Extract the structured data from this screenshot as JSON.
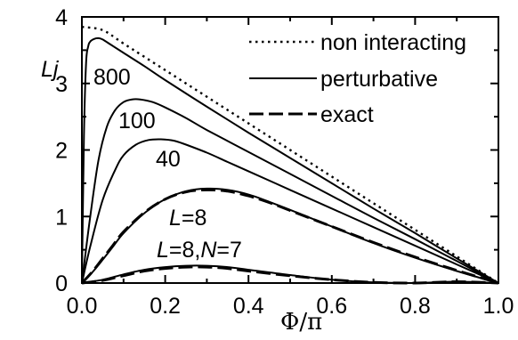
{
  "chart_data": {
    "type": "line",
    "xlabel": "Φ/π",
    "ylabel": "Lj",
    "xlim": [
      0.0,
      1.0
    ],
    "ylim": [
      0,
      4
    ],
    "x_ticks": [
      "0.0",
      "0.2",
      "0.4",
      "0.6",
      "0.8",
      "1.0"
    ],
    "y_ticks": [
      "0",
      "1",
      "2",
      "3",
      "4"
    ],
    "grid": false,
    "legend_position": "top-right",
    "legend": [
      {
        "label": "non interacting",
        "style": "dotted"
      },
      {
        "label": "perturbative",
        "style": "solid"
      },
      {
        "label": "exact",
        "style": "dashed"
      }
    ],
    "annotations": {
      "a800": "800",
      "a100": "100",
      "a40": "40",
      "l8_italic": "L",
      "l8_rest": "=8",
      "l8n7_L": "L",
      "l8n7_mid": "=8,",
      "l8n7_N": "N",
      "l8n7_end": "=7"
    },
    "series": [
      {
        "name": "non interacting",
        "style": "dotted",
        "x": [
          0.0,
          0.05,
          0.1,
          0.2,
          0.3,
          0.4,
          0.5,
          0.6,
          0.7,
          0.8,
          0.9,
          1.0
        ],
        "y": [
          3.85,
          3.8,
          3.6,
          3.2,
          2.8,
          2.4,
          2.0,
          1.6,
          1.2,
          0.8,
          0.4,
          0.0
        ]
      },
      {
        "name": "800",
        "style": "solid",
        "x": [
          0.0,
          0.005,
          0.01,
          0.015,
          0.02,
          0.03,
          0.04,
          0.05,
          0.07,
          0.1,
          0.15,
          0.2,
          0.3,
          0.4,
          0.5,
          0.6,
          0.7,
          0.8,
          0.9,
          1.0
        ],
        "y": [
          0.0,
          2.2,
          3.3,
          3.55,
          3.63,
          3.67,
          3.68,
          3.66,
          3.58,
          3.46,
          3.26,
          3.05,
          2.65,
          2.26,
          1.88,
          1.5,
          1.12,
          0.75,
          0.37,
          0.0
        ]
      },
      {
        "name": "100",
        "style": "solid",
        "x": [
          0.0,
          0.02,
          0.04,
          0.06,
          0.08,
          0.1,
          0.12,
          0.14,
          0.17,
          0.2,
          0.25,
          0.3,
          0.4,
          0.5,
          0.6,
          0.7,
          0.8,
          0.9,
          1.0
        ],
        "y": [
          0.0,
          1.0,
          1.85,
          2.35,
          2.6,
          2.72,
          2.76,
          2.76,
          2.72,
          2.64,
          2.48,
          2.3,
          1.97,
          1.64,
          1.31,
          0.98,
          0.66,
          0.33,
          0.0
        ]
      },
      {
        "name": "40",
        "style": "solid",
        "x": [
          0.0,
          0.02,
          0.05,
          0.08,
          0.1,
          0.13,
          0.16,
          0.19,
          0.22,
          0.25,
          0.3,
          0.35,
          0.4,
          0.5,
          0.6,
          0.7,
          0.8,
          0.9,
          1.0
        ],
        "y": [
          0.0,
          0.55,
          1.25,
          1.7,
          1.92,
          2.08,
          2.15,
          2.16,
          2.14,
          2.08,
          1.96,
          1.82,
          1.68,
          1.4,
          1.12,
          0.84,
          0.56,
          0.28,
          0.0
        ]
      },
      {
        "name": "L=8 perturbative",
        "style": "solid",
        "x": [
          0.0,
          0.025,
          0.05,
          0.075,
          0.1,
          0.15,
          0.2,
          0.25,
          0.3,
          0.35,
          0.4,
          0.45,
          0.5,
          0.6,
          0.7,
          0.8,
          0.9,
          1.0
        ],
        "y": [
          0.0,
          0.16,
          0.35,
          0.55,
          0.75,
          1.05,
          1.26,
          1.38,
          1.42,
          1.4,
          1.33,
          1.22,
          1.1,
          0.85,
          0.6,
          0.38,
          0.18,
          0.0
        ]
      },
      {
        "name": "L=8 exact",
        "style": "dashed",
        "x": [
          0.0,
          0.025,
          0.05,
          0.075,
          0.1,
          0.15,
          0.2,
          0.25,
          0.3,
          0.35,
          0.4,
          0.45,
          0.5,
          0.6,
          0.7,
          0.8,
          0.9,
          1.0
        ],
        "y": [
          0.0,
          0.17,
          0.37,
          0.57,
          0.77,
          1.06,
          1.26,
          1.37,
          1.4,
          1.38,
          1.31,
          1.21,
          1.09,
          0.85,
          0.61,
          0.39,
          0.19,
          0.0
        ]
      },
      {
        "name": "L=8,N=7 perturbative",
        "style": "solid",
        "x": [
          0.0,
          0.05,
          0.1,
          0.15,
          0.2,
          0.25,
          0.3,
          0.35,
          0.4,
          0.5,
          0.6,
          0.7,
          0.8,
          0.9,
          1.0
        ],
        "y": [
          0.0,
          0.05,
          0.13,
          0.2,
          0.24,
          0.26,
          0.26,
          0.24,
          0.2,
          0.12,
          0.05,
          0.01,
          0.0,
          0.02,
          0.0
        ]
      },
      {
        "name": "L=8,N=7 exact",
        "style": "dashed",
        "x": [
          0.0,
          0.05,
          0.1,
          0.15,
          0.2,
          0.25,
          0.3,
          0.35,
          0.4,
          0.5,
          0.6,
          0.7,
          0.8,
          0.9,
          1.0
        ],
        "y": [
          0.0,
          0.04,
          0.11,
          0.18,
          0.22,
          0.24,
          0.24,
          0.22,
          0.18,
          0.11,
          0.05,
          0.01,
          0.0,
          0.02,
          0.0
        ]
      }
    ]
  }
}
